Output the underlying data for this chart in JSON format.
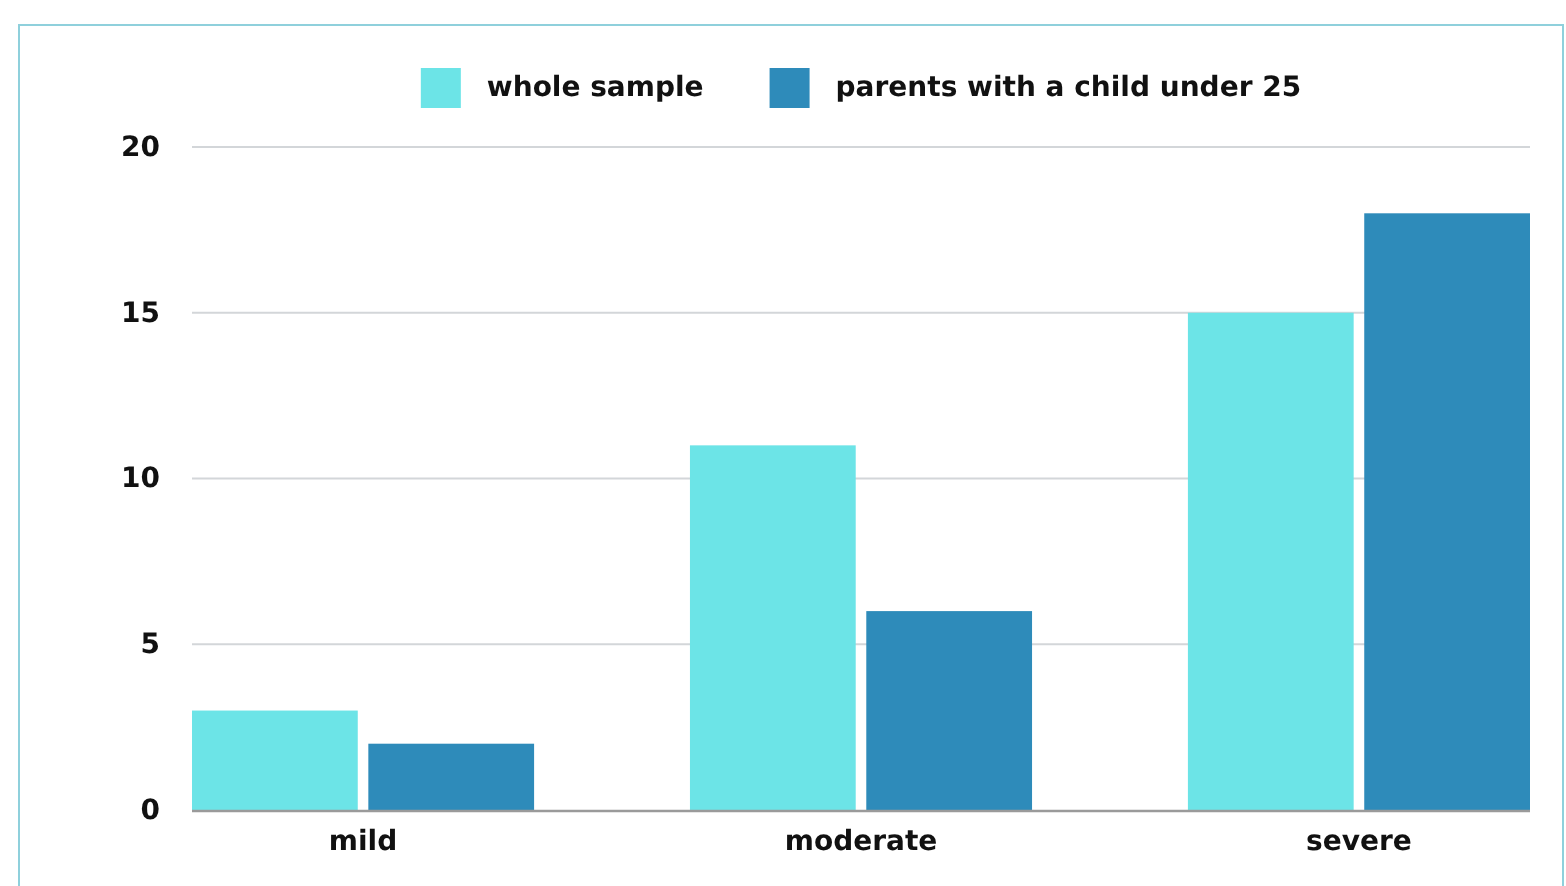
{
  "chart_data": {
    "type": "bar",
    "categories": [
      "mild",
      "moderate",
      "severe"
    ],
    "series": [
      {
        "name": "whole sample",
        "color": "#6ce4e7",
        "values": [
          3,
          11,
          15
        ]
      },
      {
        "name": "parents with a child under 25",
        "color": "#2e8bba",
        "values": [
          2,
          6,
          18
        ]
      }
    ],
    "ylim": [
      0,
      20
    ],
    "yticks": [
      0,
      5,
      10,
      15,
      20
    ],
    "grid": "y",
    "legend": "top"
  }
}
